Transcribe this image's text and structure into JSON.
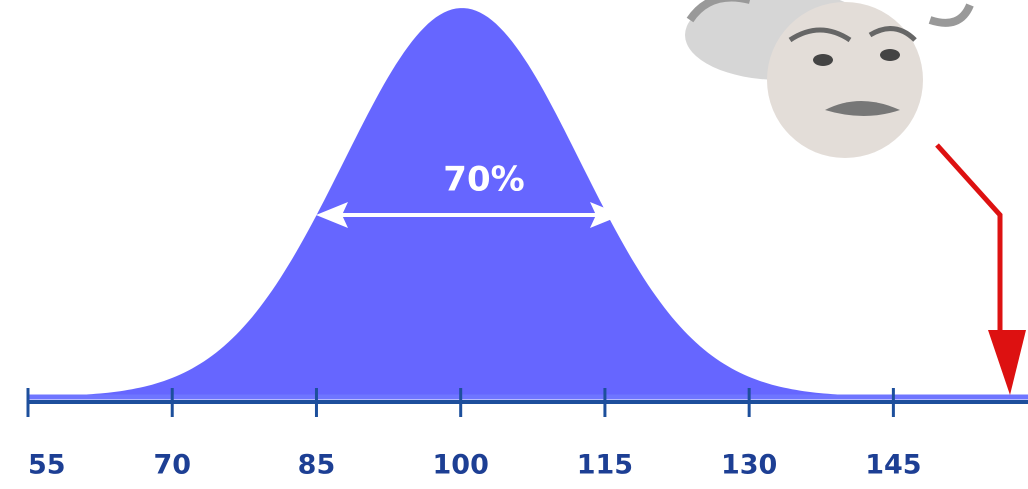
{
  "chart_data": {
    "type": "distribution",
    "annotation": "70%",
    "xlim": [
      55,
      159
    ],
    "xticks": [
      55,
      70,
      85,
      100,
      115,
      130,
      145
    ]
  }
}
